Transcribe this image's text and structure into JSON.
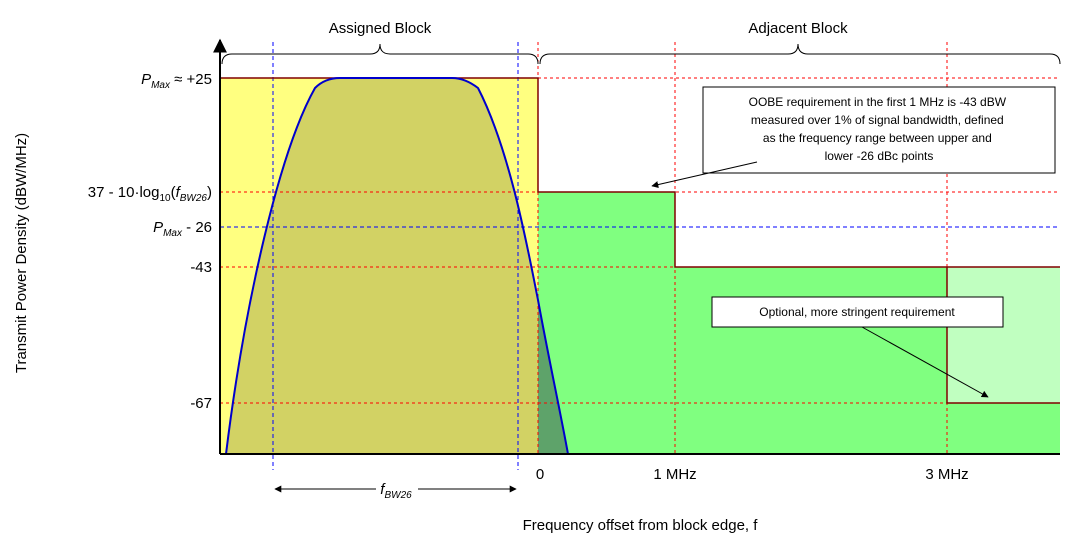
{
  "block_labels": {
    "assigned": "Assigned Block",
    "adjacent": "Adjacent Block"
  },
  "y_axis": {
    "label": "Transmit Power Density (dBW/MHz)"
  },
  "x_axis": {
    "label": "Frequency offset from block edge, f"
  },
  "y_levels": {
    "pmax": {
      "sym": "P",
      "sub": "Max",
      "rest": " ≈ +25"
    },
    "limit": {
      "pre": "37 - 10·log",
      "sub1": "10",
      "mid": "(",
      "ital": "f",
      "sub2": "BW26",
      "post": ")"
    },
    "pmax26": {
      "sym": "P",
      "sub": "Max",
      "rest": " - 26"
    },
    "m43": "-43",
    "m67": "-67"
  },
  "x_ticks": {
    "zero": "0",
    "one": "1 MHz",
    "three": "3 MHz"
  },
  "bandwidth_label": {
    "sym": "f",
    "sub": "BW26"
  },
  "callouts": {
    "oobe": [
      "OOBE requirement in the first 1 MHz is -43 dBW",
      "measured over 1% of signal bandwidth, defined",
      "as the frequency range between upper and",
      "lower -26 dBc points"
    ],
    "optional": "Optional, more stringent requirement"
  },
  "colors": {
    "assigned_fill": "#ffff80",
    "emission_fill": "#d2d264",
    "adjacent_fill": "#80ff80",
    "optional_fill": "#c0ffc0",
    "overlap_fill": "#5ea36a",
    "mask_line": "#800000",
    "red_guides": "#ff0000",
    "blue_guides": "#0000ff",
    "emission_curve": "#0000cc"
  }
}
